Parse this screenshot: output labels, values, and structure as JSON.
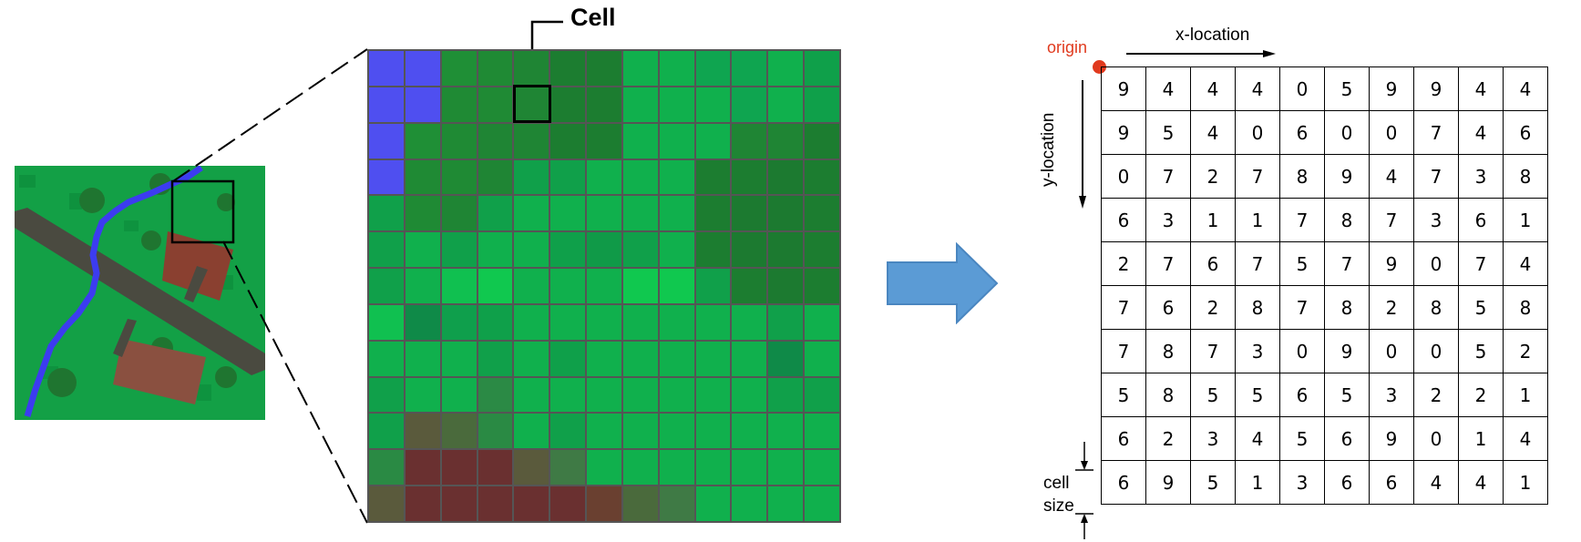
{
  "callout": {
    "cell_label": "Cell"
  },
  "raster": {
    "origin_label": "origin",
    "x_label": "x-location",
    "y_label": "y-location",
    "cell_size_label_line1": "cell",
    "cell_size_label_line2": "size",
    "values": [
      [
        9,
        4,
        4,
        4,
        0,
        5,
        9,
        9,
        4,
        4
      ],
      [
        9,
        5,
        4,
        0,
        6,
        0,
        0,
        7,
        4,
        6
      ],
      [
        0,
        7,
        2,
        7,
        8,
        9,
        4,
        7,
        3,
        8
      ],
      [
        6,
        3,
        1,
        1,
        7,
        8,
        7,
        3,
        6,
        1
      ],
      [
        2,
        7,
        6,
        7,
        5,
        7,
        9,
        0,
        7,
        4
      ],
      [
        7,
        6,
        2,
        8,
        7,
        8,
        2,
        8,
        5,
        8
      ],
      [
        7,
        8,
        7,
        3,
        0,
        9,
        0,
        0,
        5,
        2
      ],
      [
        5,
        8,
        5,
        5,
        6,
        5,
        3,
        2,
        2,
        1
      ],
      [
        6,
        2,
        3,
        4,
        5,
        6,
        9,
        0,
        1,
        4
      ],
      [
        6,
        9,
        5,
        1,
        3,
        6,
        6,
        4,
        4,
        1
      ]
    ]
  },
  "colors": {
    "water": "#4f4ff0",
    "arrow": "#5b9bd5",
    "origin": "#e03a1e"
  },
  "pixel_grid": {
    "colors": [
      [
        "#4f4ff0",
        "#4f4ff0",
        "#1f8f36",
        "#1f8a34",
        "#1f8534",
        "#1c7d30",
        "#1c7d30",
        "#10b04d",
        "#10b04d",
        "#0fa550",
        "#0fa550",
        "#10b04d",
        "#0fa04a"
      ],
      [
        "#4f4ff0",
        "#4f4ff0",
        "#1f8a34",
        "#1f8a34",
        "#1f8534",
        "#1c7d30",
        "#1c7d30",
        "#10b04d",
        "#10b04d",
        "#10b04d",
        "#0fa550",
        "#10b04d",
        "#0fa04a"
      ],
      [
        "#4f4ff0",
        "#1f8f36",
        "#1f8a34",
        "#1f8534",
        "#1f8534",
        "#1c7d30",
        "#1c7d30",
        "#10b04d",
        "#10b04d",
        "#10b04d",
        "#1f8534",
        "#1f8534",
        "#1c7d30"
      ],
      [
        "#4f4ff0",
        "#1f8a34",
        "#1f8a34",
        "#1f8534",
        "#10a04a",
        "#10a04a",
        "#10b04d",
        "#10b04d",
        "#10b04d",
        "#1c7d30",
        "#1c7d30",
        "#1c7a30",
        "#1c7d30"
      ],
      [
        "#10a04a",
        "#1f8a34",
        "#1f8534",
        "#10a04a",
        "#10b04d",
        "#10b04d",
        "#10b04d",
        "#10b04d",
        "#10b04d",
        "#1c7d30",
        "#1c7a30",
        "#1c7a30",
        "#1c7d30"
      ],
      [
        "#10a04a",
        "#10b04d",
        "#10a04a",
        "#10b04d",
        "#10b04d",
        "#0fa04a",
        "#109a48",
        "#10a04a",
        "#10b04d",
        "#1c7d30",
        "#1c7a30",
        "#1c7a30",
        "#1c7d30"
      ],
      [
        "#10a04a",
        "#10b04d",
        "#10c050",
        "#10c84f",
        "#10b04d",
        "#10b04d",
        "#10b04d",
        "#10c84f",
        "#10c84f",
        "#10a04a",
        "#1c7d30",
        "#1c7a30",
        "#1c7d30"
      ],
      [
        "#10c050",
        "#0f8a48",
        "#0f9f4c",
        "#0fa04a",
        "#10b04d",
        "#10b04d",
        "#10b04d",
        "#10b04d",
        "#10b04d",
        "#10b04d",
        "#10b04d",
        "#10a04a",
        "#10b04d"
      ],
      [
        "#10b04d",
        "#10b04d",
        "#10b04d",
        "#10a04a",
        "#10b04d",
        "#0fa04a",
        "#10b04d",
        "#10b04d",
        "#10b04d",
        "#10b04d",
        "#10b04d",
        "#0f8a48",
        "#10b04d"
      ],
      [
        "#10a04a",
        "#10b04d",
        "#10b04d",
        "#2b8a45",
        "#10b04d",
        "#10b04d",
        "#10b04d",
        "#10b04d",
        "#10b04d",
        "#10b04d",
        "#10b04d",
        "#10a04a",
        "#10a04a"
      ],
      [
        "#10a04a",
        "#5a5a3c",
        "#4a6a3c",
        "#2a8a44",
        "#10b04d",
        "#10a04a",
        "#10b04d",
        "#10b04d",
        "#10b04d",
        "#10b04d",
        "#10b04d",
        "#10b04d",
        "#10b04d"
      ],
      [
        "#2a8a44",
        "#6a3030",
        "#6a3030",
        "#6a3030",
        "#5a5a3c",
        "#3f7a45",
        "#10b04d",
        "#10b04d",
        "#10b04d",
        "#10b04d",
        "#10b04d",
        "#10b04d",
        "#10b04d"
      ],
      [
        "#5a5a3c",
        "#6a3030",
        "#6a3030",
        "#6a3030",
        "#6a3030",
        "#6a3030",
        "#6a4030",
        "#4a6a3c",
        "#3f7a45",
        "#10b04d",
        "#10b04d",
        "#10b04d",
        "#10b04d"
      ]
    ]
  }
}
